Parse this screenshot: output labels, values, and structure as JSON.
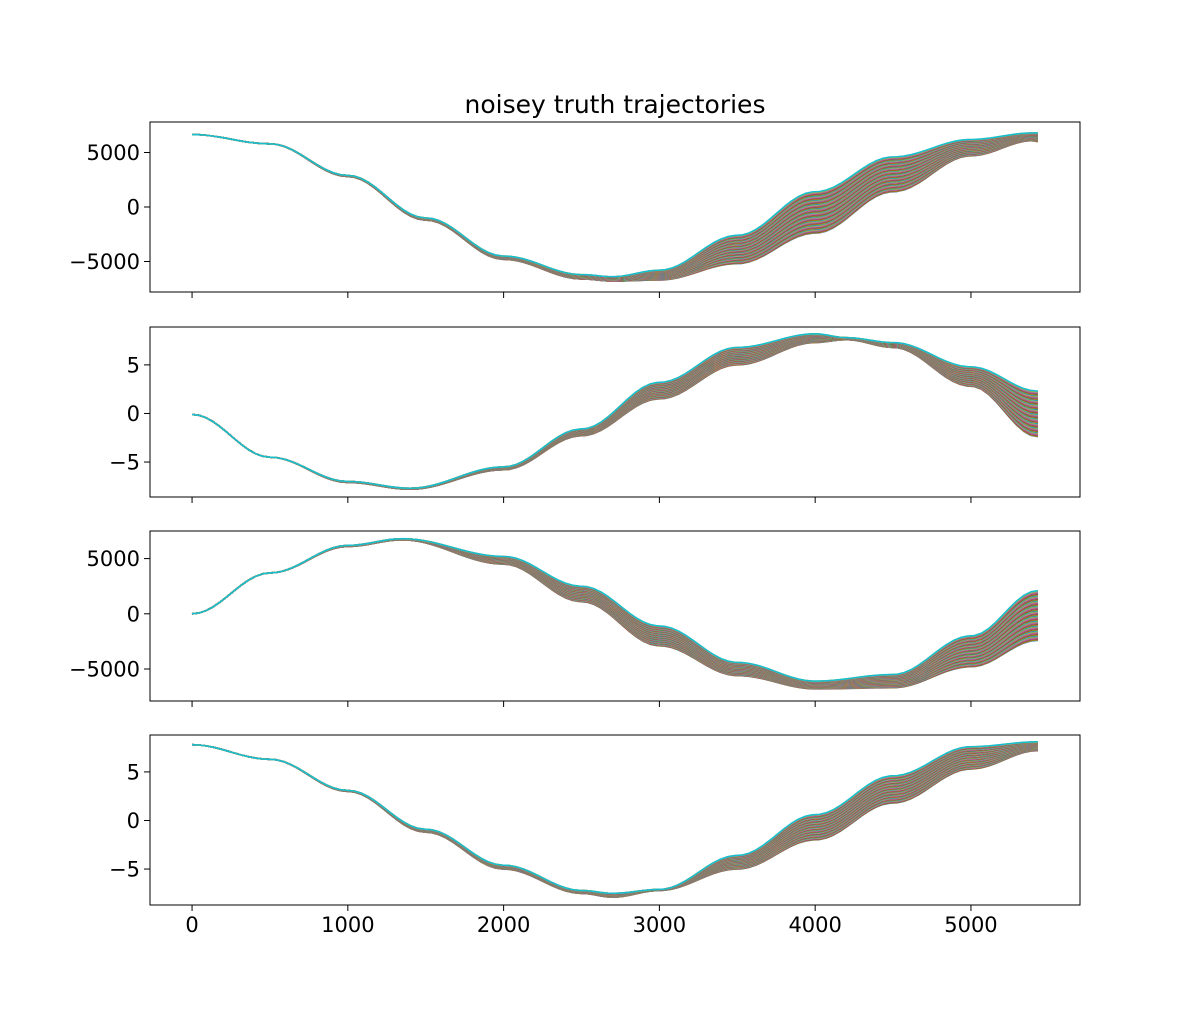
{
  "title": "noisey truth trajectories",
  "chart_data": {
    "type": "line",
    "title": "noisey truth trajectories",
    "layout": "4 vertically stacked subplots sharing the x axis",
    "shared_x_range": [
      -270,
      5700
    ],
    "shared_x_ticks": [
      0,
      1000,
      2000,
      3000,
      4000,
      5000
    ],
    "shared_x_tick_labels": [
      "0",
      "1000",
      "2000",
      "3000",
      "4000",
      "5000"
    ],
    "series_colors": [
      "#1f77b4",
      "#ff7f0e",
      "#2ca02c",
      "#d62728",
      "#9467bd",
      "#8c564b",
      "#e377c2",
      "#7f7f7f",
      "#bcbd22",
      "#17becf"
    ],
    "series_count_per_panel": 100,
    "panels": [
      {
        "xlabel": "",
        "ylabel": "",
        "ylim": [
          -7800,
          7800
        ],
        "y_ticks": [
          -5000,
          0,
          5000
        ],
        "y_tick_labels": [
          "−5000",
          "0",
          "5000"
        ],
        "x_tick_labels_visible": false,
        "envelope": {
          "x": [
            0,
            500,
            1000,
            1500,
            2000,
            2500,
            2700,
            3000,
            3500,
            4000,
            4500,
            5000,
            5400,
            5430
          ],
          "y_low": [
            6650,
            5800,
            2800,
            -1200,
            -4800,
            -6600,
            -6800,
            -6700,
            -5200,
            -2400,
            1400,
            4700,
            6100,
            6000
          ],
          "y_high": [
            6650,
            5800,
            2900,
            -1000,
            -4500,
            -6200,
            -6400,
            -5800,
            -2600,
            1400,
            4600,
            6200,
            6800,
            6800
          ]
        }
      },
      {
        "xlabel": "",
        "ylabel": "",
        "ylim": [
          -8.6,
          8.9
        ],
        "y_ticks": [
          -5,
          0,
          5
        ],
        "y_tick_labels": [
          "−5",
          "0",
          "5"
        ],
        "x_tick_labels_visible": false,
        "envelope": {
          "x": [
            0,
            500,
            1000,
            1400,
            2000,
            2500,
            3000,
            3500,
            4000,
            4200,
            4500,
            5000,
            5430
          ],
          "y_low": [
            -0.1,
            -4.5,
            -7.1,
            -7.8,
            -5.8,
            -2.3,
            1.5,
            5.0,
            7.3,
            7.6,
            6.8,
            2.8,
            -2.4
          ],
          "y_high": [
            -0.1,
            -4.5,
            -7.0,
            -7.7,
            -5.5,
            -1.6,
            3.2,
            6.8,
            8.2,
            7.8,
            7.3,
            4.8,
            2.3
          ]
        }
      },
      {
        "xlabel": "",
        "ylabel": "",
        "ylim": [
          -7900,
          7500
        ],
        "y_ticks": [
          -5000,
          0,
          5000
        ],
        "y_tick_labels": [
          "−5000",
          "0",
          "5000"
        ],
        "x_tick_labels_visible": false,
        "envelope": {
          "x": [
            0,
            500,
            1000,
            1350,
            2000,
            2500,
            3000,
            3500,
            4000,
            4500,
            5000,
            5430
          ],
          "y_low": [
            0,
            3700,
            6100,
            6700,
            4500,
            1100,
            -2900,
            -5600,
            -6800,
            -6700,
            -4800,
            -2400
          ],
          "y_high": [
            0,
            3700,
            6200,
            6800,
            5200,
            2500,
            -1100,
            -4400,
            -6100,
            -5500,
            -2000,
            2100
          ]
        }
      },
      {
        "xlabel": "",
        "ylabel": "",
        "ylim": [
          -8.7,
          8.8
        ],
        "y_ticks": [
          -5,
          0,
          5
        ],
        "y_tick_labels": [
          "−5",
          "0",
          "5"
        ],
        "x_tick_labels_visible": true,
        "envelope": {
          "x": [
            0,
            500,
            1000,
            1500,
            2000,
            2500,
            2700,
            3000,
            3500,
            4000,
            4500,
            5000,
            5430
          ],
          "y_low": [
            7.8,
            6.3,
            3.0,
            -1.2,
            -5.0,
            -7.5,
            -7.9,
            -7.2,
            -5.0,
            -2.0,
            1.8,
            5.3,
            7.2
          ],
          "y_high": [
            7.8,
            6.3,
            3.1,
            -0.9,
            -4.6,
            -7.2,
            -7.5,
            -7.1,
            -3.6,
            0.6,
            4.6,
            7.6,
            8.1
          ]
        }
      }
    ]
  }
}
